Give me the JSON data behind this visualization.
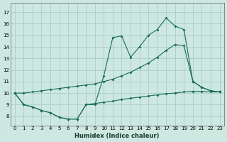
{
  "xlabel": "Humidex (Indice chaleur)",
  "background_color": "#cce8e0",
  "grid_color": "#aacccc",
  "line_color": "#1a6b5a",
  "xlim": [
    -0.5,
    23.5
  ],
  "ylim": [
    7.5,
    17.5
  ],
  "yticks": [
    8,
    9,
    10,
    11,
    12,
    13,
    14,
    15,
    16,
    17
  ],
  "xticks": [
    0,
    1,
    2,
    3,
    4,
    5,
    6,
    7,
    8,
    9,
    10,
    11,
    12,
    13,
    14,
    15,
    16,
    17,
    18,
    19,
    20,
    21,
    22,
    23
  ],
  "series": [
    {
      "x": [
        0,
        1,
        2,
        3,
        4,
        5,
        6,
        7,
        8,
        9,
        10,
        11,
        12,
        13,
        14,
        15,
        16,
        17,
        18,
        19,
        20,
        21,
        22,
        23
      ],
      "y": [
        10.0,
        9.0,
        8.8,
        8.5,
        8.3,
        7.9,
        7.75,
        7.75,
        9.0,
        9.1,
        9.2,
        9.3,
        9.45,
        9.55,
        9.65,
        9.75,
        9.85,
        9.95,
        10.0,
        10.1,
        10.15,
        10.15,
        10.1,
        10.1
      ]
    },
    {
      "x": [
        0,
        1,
        2,
        3,
        4,
        5,
        6,
        7,
        8,
        9,
        10,
        11,
        12,
        13,
        14,
        15,
        16,
        17,
        18,
        19,
        20,
        21,
        22,
        23
      ],
      "y": [
        10.0,
        9.0,
        8.8,
        8.5,
        8.3,
        7.9,
        7.75,
        7.75,
        9.0,
        9.0,
        11.5,
        14.8,
        14.95,
        13.1,
        14.0,
        15.0,
        15.5,
        16.5,
        15.8,
        15.5,
        11.0,
        10.5,
        10.2,
        10.1
      ]
    },
    {
      "x": [
        0,
        1,
        2,
        3,
        4,
        5,
        6,
        7,
        8,
        9,
        10,
        11,
        12,
        13,
        14,
        15,
        16,
        17,
        18,
        19,
        20,
        21,
        22,
        23
      ],
      "y": [
        10.0,
        10.0,
        10.1,
        10.2,
        10.3,
        10.4,
        10.5,
        10.6,
        10.7,
        10.8,
        11.0,
        11.2,
        11.5,
        11.8,
        12.2,
        12.6,
        13.1,
        13.7,
        14.2,
        14.1,
        11.0,
        10.5,
        10.2,
        10.1
      ]
    }
  ]
}
